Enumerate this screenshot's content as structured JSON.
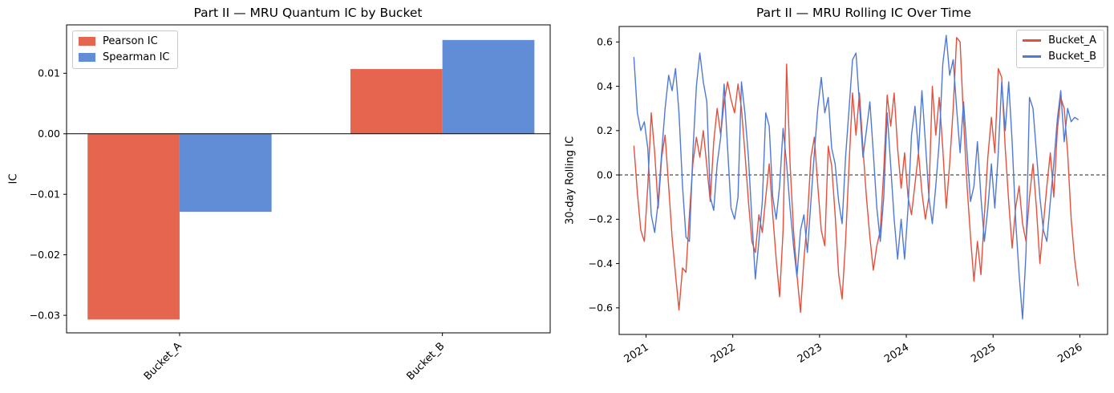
{
  "chart_data": [
    {
      "type": "bar",
      "title": "Part II — MRU Quantum IC by Bucket",
      "ylabel": "IC",
      "categories": [
        "Bucket_A",
        "Bucket_B"
      ],
      "series": [
        {
          "name": "Pearson IC",
          "color": "#e5654f",
          "values": [
            -0.0307,
            0.0107
          ]
        },
        {
          "name": "Spearman IC",
          "color": "#618cd6",
          "values": [
            -0.0129,
            0.0155
          ]
        }
      ],
      "bar_width": 0.35,
      "xlim": [
        -0.43,
        1.41
      ],
      "ylim": [
        -0.0329,
        0.018
      ],
      "yticks": [
        {
          "v": 0.01,
          "label": "0.01"
        },
        {
          "v": 0.0,
          "label": "0.00"
        },
        {
          "v": -0.01,
          "label": "−0.01"
        },
        {
          "v": -0.02,
          "label": "−0.02"
        },
        {
          "v": -0.03,
          "label": "−0.03"
        }
      ],
      "zero_line": true,
      "legend_position": "upper left",
      "grid": false
    },
    {
      "type": "line",
      "title": "Part II — MRU Rolling IC Over Time",
      "ylabel": "30-day Rolling IC",
      "xlim": [
        2020.69,
        2026.32
      ],
      "ylim": [
        -0.72,
        0.67
      ],
      "x_start": 2020.86,
      "x_step": 0.04,
      "xticks": [
        {
          "v": 2021,
          "label": "2021"
        },
        {
          "v": 2022,
          "label": "2022"
        },
        {
          "v": 2023,
          "label": "2023"
        },
        {
          "v": 2024,
          "label": "2024"
        },
        {
          "v": 2025,
          "label": "2025"
        },
        {
          "v": 2026,
          "label": "2026"
        }
      ],
      "yticks": [
        {
          "v": 0.6,
          "label": "0.6"
        },
        {
          "v": 0.4,
          "label": "0.4"
        },
        {
          "v": 0.2,
          "label": "0.2"
        },
        {
          "v": 0.0,
          "label": "0.0"
        },
        {
          "v": -0.2,
          "label": "−0.2"
        },
        {
          "v": -0.4,
          "label": "−0.4"
        },
        {
          "v": -0.6,
          "label": "−0.6"
        }
      ],
      "zero_line_dashed": true,
      "legend_position": "upper right",
      "grid": false,
      "series": [
        {
          "name": "Bucket_A",
          "color": "#e4503c",
          "values": [
            0.13,
            -0.08,
            -0.25,
            -0.3,
            -0.05,
            0.28,
            0.1,
            -0.15,
            0.08,
            0.18,
            -0.05,
            -0.28,
            -0.45,
            -0.61,
            -0.42,
            -0.44,
            -0.18,
            0.05,
            0.17,
            0.08,
            0.2,
            0.04,
            -0.12,
            0.15,
            0.3,
            0.18,
            0.33,
            0.42,
            0.34,
            0.28,
            0.41,
            0.3,
            0.1,
            -0.12,
            -0.3,
            -0.35,
            -0.18,
            -0.26,
            -0.1,
            0.05,
            -0.18,
            -0.38,
            -0.55,
            -0.25,
            0.5,
            0.05,
            -0.25,
            -0.45,
            -0.62,
            -0.38,
            -0.2,
            0.08,
            0.17,
            -0.05,
            -0.25,
            -0.32,
            0.13,
            0.04,
            -0.18,
            -0.45,
            -0.56,
            -0.3,
            0.05,
            0.37,
            0.18,
            0.37,
            0.12,
            -0.1,
            -0.28,
            -0.43,
            -0.32,
            -0.25,
            0.02,
            0.36,
            0.22,
            0.37,
            0.12,
            -0.06,
            0.1,
            -0.1,
            -0.18,
            -0.04,
            0.1,
            -0.08,
            -0.2,
            -0.1,
            0.4,
            0.18,
            0.35,
            0.12,
            -0.15,
            0.05,
            0.3,
            0.62,
            0.6,
            0.25,
            -0.05,
            -0.28,
            -0.48,
            -0.3,
            -0.45,
            -0.18,
            0.08,
            0.26,
            0.1,
            0.48,
            0.44,
            0.12,
            -0.12,
            -0.33,
            -0.15,
            -0.05,
            -0.22,
            -0.3,
            -0.1,
            0.05,
            -0.15,
            -0.4,
            -0.22,
            -0.05,
            0.1,
            -0.1,
            0.2,
            0.35,
            0.3,
            0.1,
            -0.2,
            -0.38,
            -0.5
          ]
        },
        {
          "name": "Bucket_B",
          "color": "#4f79d6",
          "values": [
            0.53,
            0.28,
            0.2,
            0.24,
            0.12,
            -0.18,
            -0.26,
            -0.12,
            0.1,
            0.3,
            0.45,
            0.38,
            0.48,
            0.28,
            -0.05,
            -0.28,
            -0.3,
            0.1,
            0.4,
            0.55,
            0.42,
            0.33,
            -0.1,
            -0.16,
            0.05,
            0.17,
            0.41,
            0.12,
            -0.15,
            -0.2,
            -0.1,
            0.42,
            0.28,
            0.08,
            -0.2,
            -0.47,
            -0.3,
            -0.12,
            0.28,
            0.22,
            -0.1,
            -0.2,
            -0.05,
            0.21,
            0.05,
            -0.15,
            -0.32,
            -0.46,
            -0.25,
            -0.18,
            -0.35,
            -0.12,
            0.1,
            0.3,
            0.44,
            0.28,
            0.35,
            0.12,
            0.05,
            -0.12,
            -0.22,
            0.08,
            0.3,
            0.52,
            0.55,
            0.32,
            0.08,
            0.2,
            0.33,
            0.1,
            -0.15,
            -0.3,
            -0.1,
            0.28,
            0.04,
            -0.2,
            -0.38,
            -0.2,
            -0.38,
            -0.15,
            0.18,
            0.31,
            0.1,
            0.38,
            0.15,
            -0.1,
            -0.22,
            -0.05,
            0.15,
            0.5,
            0.63,
            0.45,
            0.52,
            0.3,
            0.1,
            0.33,
            0.1,
            -0.12,
            -0.05,
            0.15,
            -0.1,
            -0.3,
            -0.15,
            0.05,
            -0.15,
            0.1,
            0.42,
            0.2,
            0.42,
            0.15,
            -0.2,
            -0.45,
            -0.65,
            -0.35,
            0.35,
            0.3,
            0.1,
            -0.1,
            -0.25,
            -0.3,
            -0.12,
            0.05,
            0.25,
            0.38,
            0.15,
            0.3,
            0.24,
            0.26,
            0.25
          ]
        }
      ]
    }
  ]
}
